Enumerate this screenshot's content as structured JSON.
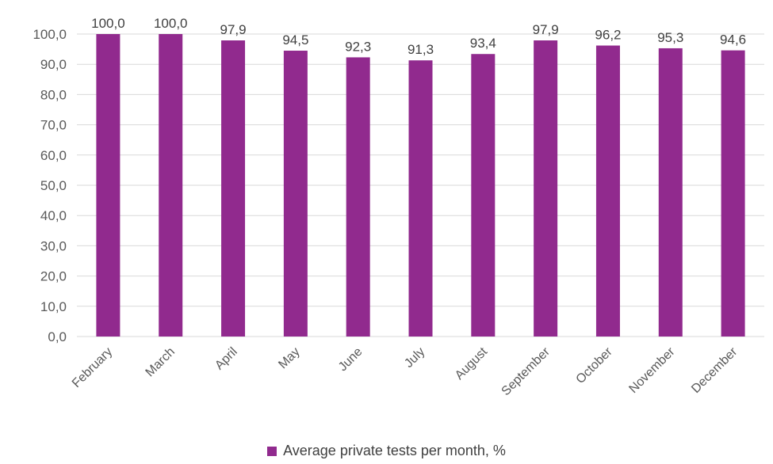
{
  "chart_data": {
    "type": "bar",
    "categories": [
      "February",
      "March",
      "April",
      "May",
      "June",
      "July",
      "August",
      "September",
      "October",
      "November",
      "December"
    ],
    "series": [
      {
        "name": "Average private tests per month, %",
        "values": [
          100.0,
          100.0,
          97.9,
          94.5,
          92.3,
          91.3,
          93.4,
          97.9,
          96.2,
          95.3,
          94.6
        ],
        "value_labels": [
          "100,0",
          "100,0",
          "97,9",
          "94,5",
          "92,3",
          "91,3",
          "93,4",
          "97,9",
          "96,2",
          "95,3",
          "94,6"
        ]
      }
    ],
    "y_tick_labels": [
      "0,0",
      "10,0",
      "20,0",
      "30,0",
      "40,0",
      "50,0",
      "60,0",
      "70,0",
      "80,0",
      "90,0",
      "100,0"
    ],
    "ylim": [
      0,
      100
    ],
    "ytick_step": 10,
    "grid": true,
    "legend_position": "bottom",
    "bar_color": "#912A8E",
    "grid_color": "#D9D9D9",
    "title": "",
    "xlabel": "",
    "ylabel": ""
  }
}
